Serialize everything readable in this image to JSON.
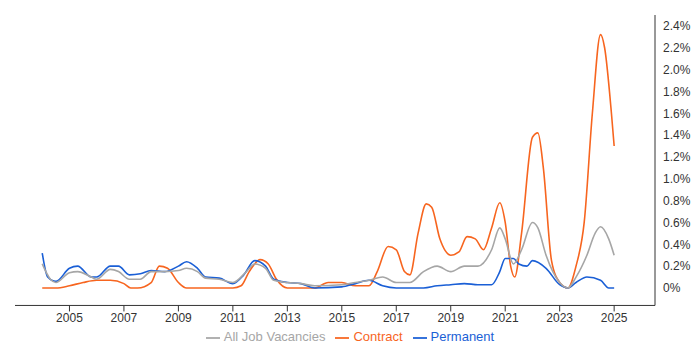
{
  "chart_data": {
    "type": "line",
    "xlim": [
      2003,
      2026.5
    ],
    "xticks": [
      2005,
      2007,
      2009,
      2011,
      2013,
      2015,
      2017,
      2019,
      2021,
      2023,
      2025
    ],
    "ylim": [
      -0.16,
      2.5
    ],
    "yticks": [
      {
        "value": 0,
        "label": "0%"
      },
      {
        "value": 0.2,
        "label": "0.2%"
      },
      {
        "value": 0.4,
        "label": "0.4%"
      },
      {
        "value": 0.6,
        "label": "0.6%"
      },
      {
        "value": 0.8,
        "label": "0.8%"
      },
      {
        "value": 1.0,
        "label": "1.0%"
      },
      {
        "value": 1.2,
        "label": "1.2%"
      },
      {
        "value": 1.4,
        "label": "1.4%"
      },
      {
        "value": 1.6,
        "label": "1.6%"
      },
      {
        "value": 1.8,
        "label": "1.8%"
      },
      {
        "value": 2.0,
        "label": "2.0%"
      },
      {
        "value": 2.2,
        "label": "2.2%"
      },
      {
        "value": 2.4,
        "label": "2.4%"
      }
    ],
    "grid": false,
    "legend": "bottom",
    "series": [
      {
        "name": "Contract",
        "color": "#f7651f",
        "x": [
          2004.0,
          2004.5,
          2005.0,
          2005.5,
          2006.0,
          2006.5,
          2007.0,
          2007.25,
          2007.5,
          2008.0,
          2008.3,
          2008.6,
          2009.0,
          2009.3,
          2010.0,
          2011.0,
          2011.3,
          2011.6,
          2012.0,
          2012.3,
          2012.6,
          2013.0,
          2014.0,
          2014.5,
          2015.0,
          2015.5,
          2016.0,
          2016.3,
          2016.7,
          2017.0,
          2017.3,
          2017.5,
          2017.8,
          2018.1,
          2018.3,
          2018.6,
          2019.0,
          2019.3,
          2019.6,
          2019.9,
          2020.2,
          2020.5,
          2020.8,
          2021.0,
          2021.2,
          2021.35,
          2021.6,
          2022.0,
          2022.2,
          2022.4,
          2022.7,
          2023.0,
          2023.3,
          2023.6,
          2023.9,
          2024.2,
          2024.5,
          2024.65,
          2024.9,
          2025.0
        ],
        "values": [
          0,
          0,
          0.02,
          0.05,
          0.07,
          0.07,
          0.04,
          0,
          0,
          0.05,
          0.2,
          0.18,
          0.05,
          0,
          0,
          0,
          0.02,
          0.15,
          0.26,
          0.22,
          0.08,
          0,
          0,
          0.05,
          0.05,
          0.02,
          0.02,
          0.15,
          0.38,
          0.35,
          0.15,
          0.12,
          0.5,
          0.77,
          0.74,
          0.45,
          0.3,
          0.33,
          0.47,
          0.45,
          0.35,
          0.55,
          0.78,
          0.6,
          0.2,
          0.1,
          0.5,
          1.38,
          1.42,
          1.1,
          0.25,
          0.05,
          0,
          0.2,
          0.6,
          1.6,
          2.32,
          2.2,
          1.6,
          1.3
        ]
      },
      {
        "name": "Permanent",
        "color": "#1a5fd6",
        "x": [
          2004.0,
          2004.2,
          2004.5,
          2005.0,
          2005.3,
          2005.8,
          2006.0,
          2006.5,
          2006.8,
          2007.2,
          2007.6,
          2008.0,
          2008.5,
          2009.0,
          2009.3,
          2009.7,
          2010.0,
          2010.5,
          2011.0,
          2011.4,
          2011.8,
          2012.2,
          2012.5,
          2013.0,
          2013.5,
          2014.0,
          2015.0,
          2015.5,
          2016.0,
          2016.5,
          2017.0,
          2018.0,
          2018.5,
          2019.0,
          2019.5,
          2020.0,
          2020.5,
          2020.8,
          2021.0,
          2021.3,
          2021.5,
          2021.8,
          2022.0,
          2022.5,
          2023.0,
          2023.3,
          2023.6,
          2024.0,
          2024.5,
          2024.8,
          2025.0
        ],
        "values": [
          0.32,
          0.1,
          0.06,
          0.18,
          0.2,
          0.1,
          0.1,
          0.2,
          0.2,
          0.12,
          0.13,
          0.16,
          0.15,
          0.2,
          0.24,
          0.18,
          0.1,
          0.09,
          0.04,
          0.12,
          0.25,
          0.2,
          0.08,
          0.05,
          0.04,
          0,
          0.01,
          0.04,
          0.07,
          0.02,
          0,
          0,
          0.02,
          0.03,
          0.04,
          0.03,
          0.03,
          0.15,
          0.27,
          0.27,
          0.22,
          0.2,
          0.25,
          0.18,
          0.03,
          0,
          0.05,
          0.1,
          0.07,
          0,
          0
        ]
      },
      {
        "name": "All Job Vacancies",
        "color": "#a6a6a6",
        "x": [
          2004.0,
          2004.3,
          2004.5,
          2005.0,
          2005.3,
          2005.8,
          2006.0,
          2006.5,
          2006.8,
          2007.2,
          2007.6,
          2008.0,
          2008.5,
          2009.0,
          2009.3,
          2009.7,
          2010.0,
          2010.5,
          2011.0,
          2011.5,
          2011.8,
          2012.2,
          2012.5,
          2013.0,
          2013.5,
          2014.0,
          2015.0,
          2015.5,
          2016.0,
          2016.5,
          2017.0,
          2017.5,
          2018.0,
          2018.5,
          2019.0,
          2019.5,
          2020.0,
          2020.5,
          2020.8,
          2021.0,
          2021.3,
          2021.6,
          2022.0,
          2022.2,
          2022.5,
          2023.0,
          2023.3,
          2023.6,
          2024.0,
          2024.3,
          2024.5,
          2024.8,
          2025.0
        ],
        "values": [
          0.22,
          0.08,
          0.05,
          0.14,
          0.15,
          0.1,
          0.08,
          0.17,
          0.15,
          0.08,
          0.08,
          0.15,
          0.15,
          0.16,
          0.18,
          0.15,
          0.09,
          0.08,
          0.05,
          0.15,
          0.22,
          0.18,
          0.07,
          0.05,
          0.04,
          0.02,
          0.03,
          0.05,
          0.07,
          0.1,
          0.05,
          0.05,
          0.15,
          0.2,
          0.15,
          0.2,
          0.2,
          0.35,
          0.55,
          0.45,
          0.22,
          0.35,
          0.6,
          0.55,
          0.3,
          0.05,
          0,
          0.1,
          0.3,
          0.5,
          0.56,
          0.45,
          0.3
        ]
      }
    ]
  }
}
